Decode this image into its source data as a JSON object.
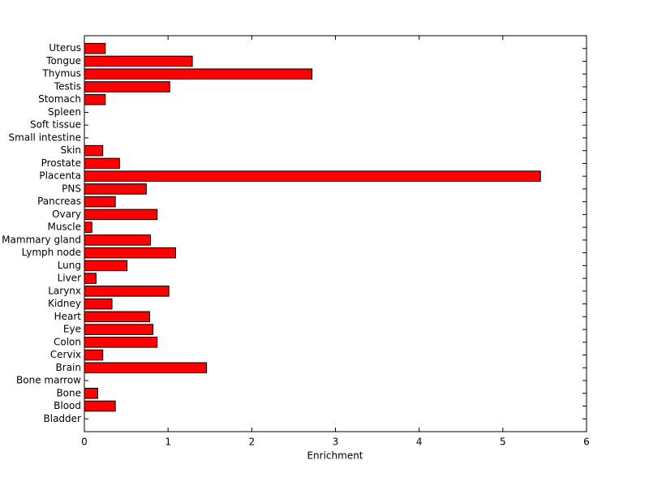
{
  "chart_data": {
    "type": "bar",
    "orientation": "horizontal",
    "xlabel": "Enrichment",
    "categories": [
      "Bladder",
      "Blood",
      "Bone",
      "Bone marrow",
      "Brain",
      "Cervix",
      "Colon",
      "Eye",
      "Heart",
      "Kidney",
      "Larynx",
      "Liver",
      "Lung",
      "Lymph node",
      "Mammary gland",
      "Muscle",
      "Ovary",
      "Pancreas",
      "PNS",
      "Placenta",
      "Prostate",
      "Skin",
      "Small intestine",
      "Soft tissue",
      "Spleen",
      "Stomach",
      "Testis",
      "Thymus",
      "Tongue",
      "Uterus"
    ],
    "values": [
      0,
      0.37,
      0.16,
      0,
      1.46,
      0.22,
      0.87,
      0.82,
      0.78,
      0.33,
      1.01,
      0.14,
      0.51,
      1.09,
      0.79,
      0.09,
      0.87,
      0.37,
      0.74,
      5.45,
      0.42,
      0.22,
      0,
      0,
      0,
      0.25,
      1.02,
      2.72,
      1.29,
      0.25
    ],
    "color": "#ff0000",
    "xlim": [
      0,
      6
    ],
    "xticks": [
      0,
      1,
      2,
      3,
      4,
      5,
      6
    ],
    "grid": false
  }
}
